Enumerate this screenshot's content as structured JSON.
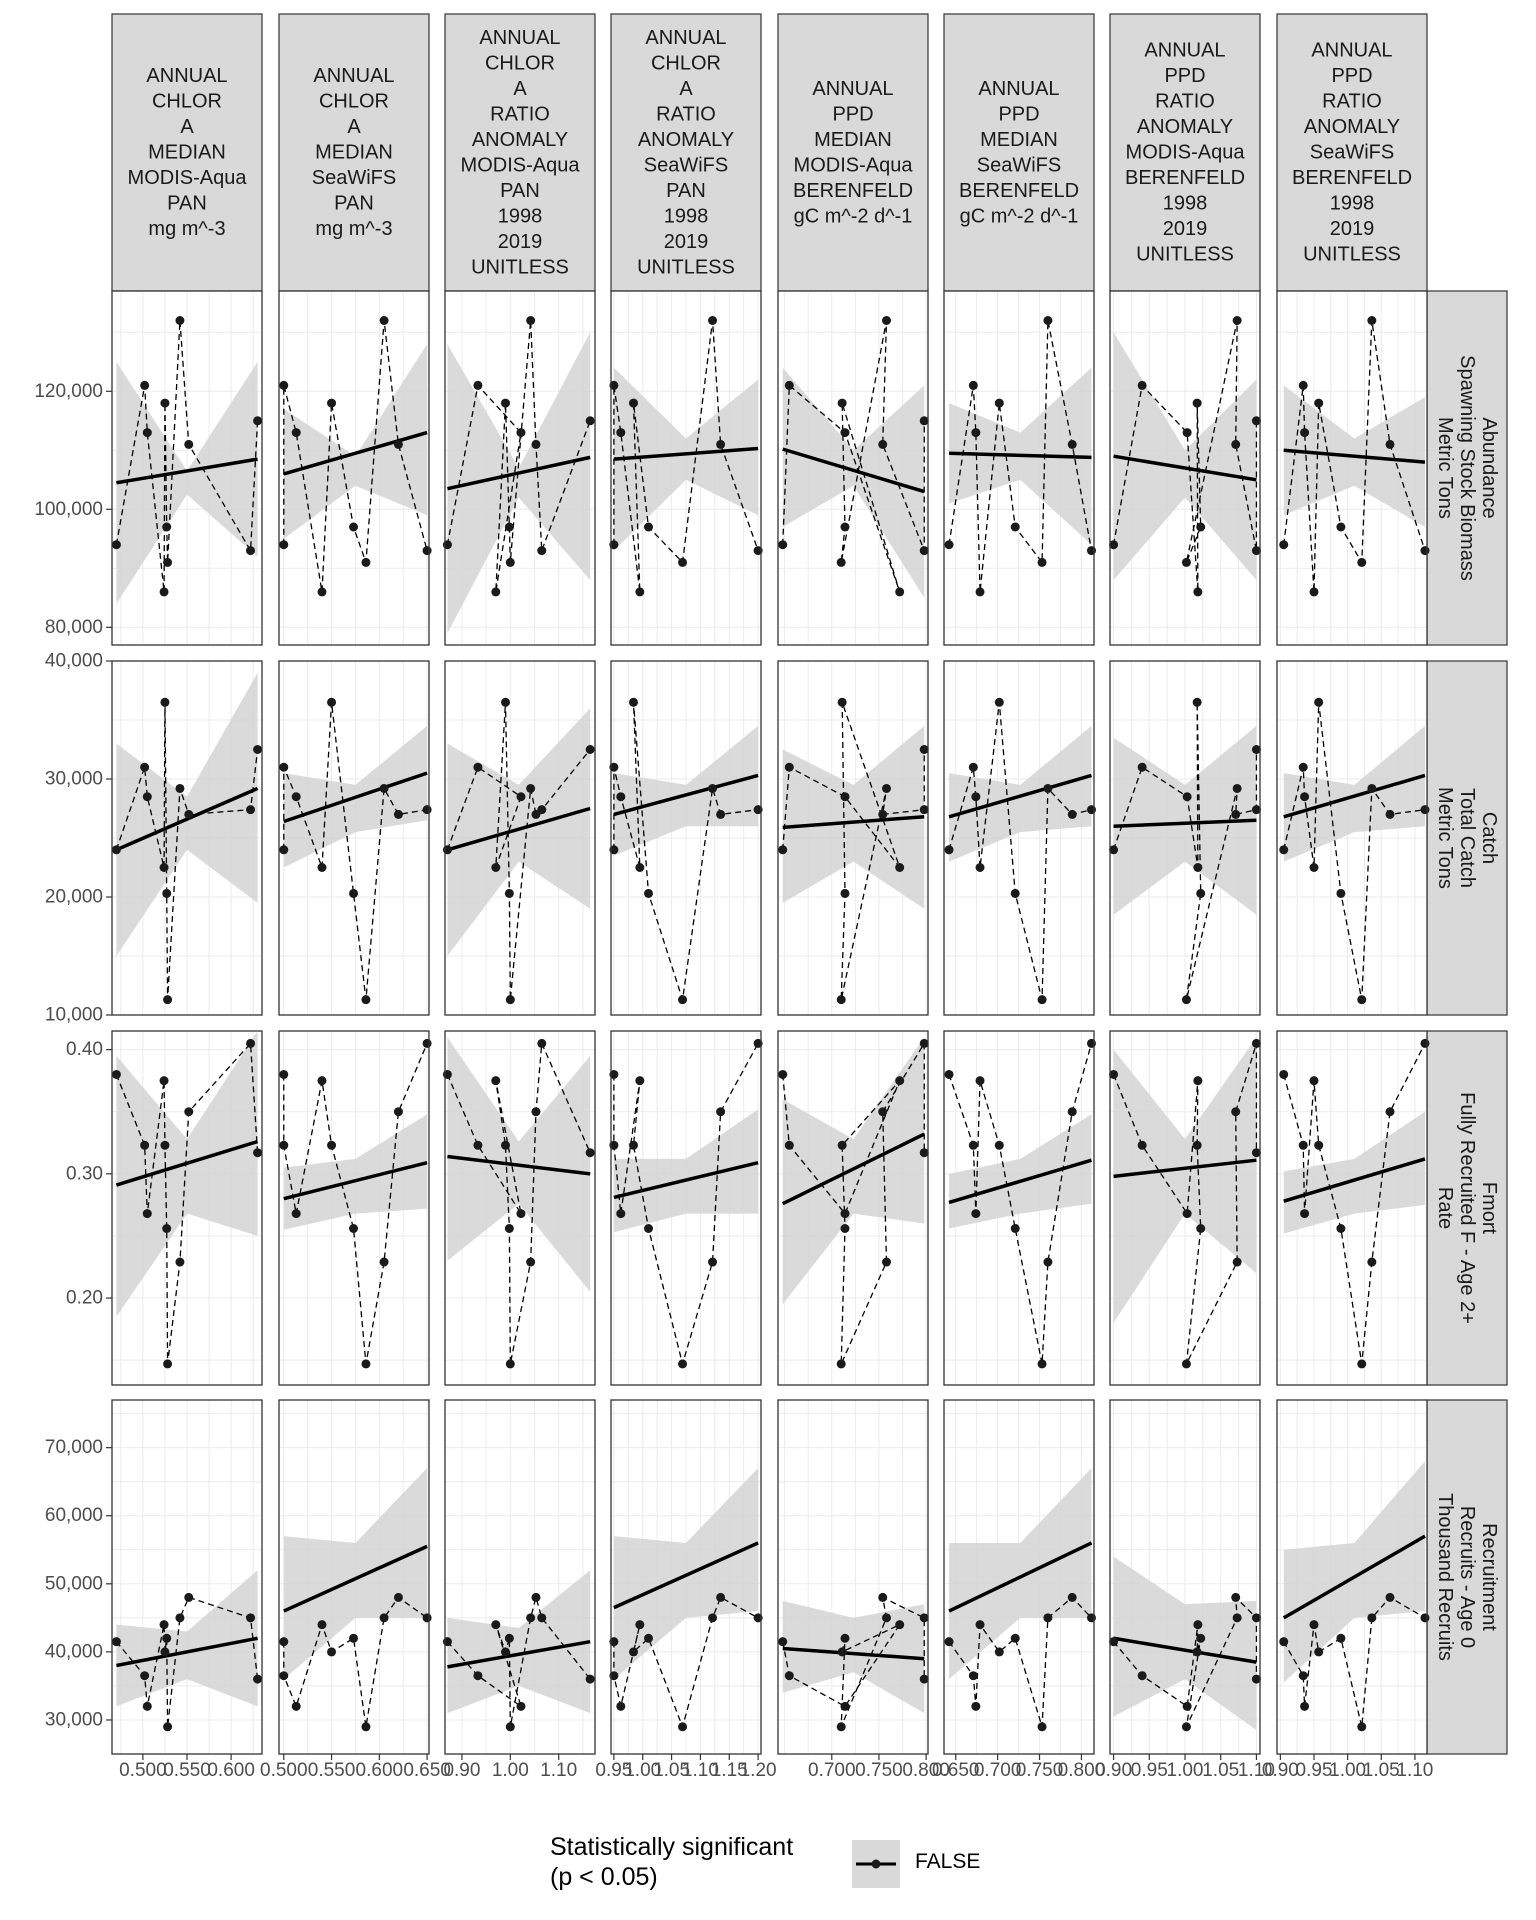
{
  "chart_data": {
    "type": "scatter",
    "facet_columns": [
      {
        "strip": [
          "ANNUAL",
          "CHLOR",
          "A",
          "MEDIAN",
          "MODIS-Aqua",
          "PAN",
          "mg m^-3"
        ],
        "xlim": [
          0.465,
          0.635
        ],
        "ticks": [
          0.5,
          0.55,
          0.6
        ],
        "tick_labels": [
          "0.500",
          "0.550",
          "0.600"
        ],
        "x": [
          0.47,
          0.502,
          0.505,
          0.524,
          0.525,
          0.527,
          0.528,
          0.542,
          0.552,
          0.622,
          0.63
        ]
      },
      {
        "strip": [
          "ANNUAL",
          "CHLOR",
          "A",
          "MEDIAN",
          "SeaWiFS",
          "PAN",
          "mg m^-3"
        ],
        "xlim": [
          0.495,
          0.652
        ],
        "ticks": [
          0.5,
          0.55,
          0.6,
          0.65
        ],
        "tick_labels": [
          "0.500",
          "0.550",
          "0.600",
          "0.650"
        ],
        "x": [
          0.5,
          0.5,
          0.513,
          0.54,
          0.55,
          0.573,
          0.586,
          0.605,
          0.62,
          0.65,
          null
        ]
      },
      {
        "strip": [
          "ANNUAL",
          "CHLOR",
          "A",
          "RATIO",
          "ANOMALY",
          "MODIS-Aqua",
          "PAN",
          "1998",
          "2019",
          "UNITLESS"
        ],
        "xlim": [
          0.865,
          1.175
        ],
        "ticks": [
          0.9,
          1.0,
          1.1
        ],
        "tick_labels": [
          "0.90",
          "1.00",
          "1.10"
        ],
        "x": [
          0.87,
          0.933,
          1.022,
          0.97,
          0.99,
          0.998,
          1.0,
          1.042,
          1.053,
          1.065,
          1.165
        ]
      },
      {
        "strip": [
          "ANNUAL",
          "CHLOR",
          "A",
          "RATIO",
          "ANOMALY",
          "SeaWiFS",
          "PAN",
          "1998",
          "2019",
          "UNITLESS"
        ],
        "xlim": [
          0.945,
          1.205
        ],
        "ticks": [
          0.95,
          1.0,
          1.05,
          1.1,
          1.15,
          1.2
        ],
        "tick_labels": [
          "0.95",
          "1.00",
          "1.05",
          "1.10",
          "1.15",
          "1.20"
        ],
        "x": [
          0.95,
          0.95,
          0.962,
          0.995,
          0.984,
          1.01,
          1.069,
          1.121,
          1.135,
          1.2,
          null
        ]
      },
      {
        "strip": [
          "ANNUAL",
          "PPD",
          "MEDIAN",
          "MODIS-Aqua",
          "BERENFELD",
          "gC m^-2 d^-1"
        ],
        "xlim": [
          0.643,
          0.802
        ],
        "ticks": [
          0.7,
          0.75,
          0.8
        ],
        "tick_labels": [
          "0.700",
          "0.750",
          "0.800"
        ],
        "x": [
          0.648,
          0.655,
          0.714,
          0.772,
          0.711,
          0.714,
          0.71,
          0.758,
          0.754,
          0.798,
          0.798
        ]
      },
      {
        "strip": [
          "ANNUAL",
          "PPD",
          "MEDIAN",
          "SeaWiFS",
          "BERENFELD",
          "gC m^-2 d^-1"
        ],
        "xlim": [
          0.636,
          0.815
        ],
        "ticks": [
          0.65,
          0.7,
          0.75,
          0.8
        ],
        "tick_labels": [
          "0.650",
          "0.700",
          "0.750",
          "0.800"
        ],
        "x": [
          0.642,
          0.671,
          0.674,
          0.679,
          0.702,
          0.721,
          0.753,
          0.76,
          0.789,
          0.812,
          null
        ]
      },
      {
        "strip": [
          "ANNUAL",
          "PPD",
          "RATIO",
          "ANOMALY",
          "MODIS-Aqua",
          "BERENFELD",
          "1998",
          "2019",
          "UNITLESS"
        ],
        "xlim": [
          0.895,
          1.105
        ],
        "ticks": [
          0.9,
          0.95,
          1.0,
          1.05,
          1.1
        ],
        "tick_labels": [
          "0.90",
          "0.95",
          "1.00",
          "1.05",
          "1.10"
        ],
        "x": [
          0.9,
          0.94,
          1.003,
          1.018,
          1.017,
          1.022,
          1.002,
          1.073,
          1.071,
          1.1,
          1.1
        ]
      },
      {
        "strip": [
          "ANNUAL",
          "PPD",
          "RATIO",
          "ANOMALY",
          "SeaWiFS",
          "BERENFELD",
          "1998",
          "2019",
          "UNITLESS"
        ],
        "xlim": [
          0.895,
          1.118
        ],
        "ticks": [
          0.9,
          0.95,
          1.0,
          1.05,
          1.1
        ],
        "tick_labels": [
          "0.90",
          "0.95",
          "1.00",
          "1.05",
          "1.10"
        ],
        "x": [
          0.905,
          0.934,
          0.936,
          0.95,
          0.957,
          0.99,
          1.021,
          1.036,
          1.063,
          1.115,
          null
        ]
      }
    ],
    "facet_rows": [
      {
        "strip": [
          "Abundance",
          "Spawning Stock Biomass",
          "Metric Tons"
        ],
        "ylim": [
          77000,
          137000
        ],
        "ticks": [
          80000,
          100000,
          120000
        ],
        "tick_labels": [
          "80,000",
          "100,000",
          "120,000"
        ],
        "y": [
          94000,
          121000,
          113000,
          86000,
          118000,
          97000,
          91000,
          132000,
          111000,
          93000,
          115000
        ],
        "fit": [
          [
            104500,
            108500
          ],
          [
            106000,
            113000
          ],
          [
            103500,
            108800
          ],
          [
            108500,
            110300
          ],
          [
            110200,
            103000
          ],
          [
            109500,
            108800
          ],
          [
            109000,
            105000
          ],
          [
            110000,
            108000
          ]
        ],
        "band": [
          [
            [
              84000,
              125000
            ],
            [
              102500,
              106500
            ],
            [
              92000,
              125000
            ]
          ],
          [
            [
              95000,
              117000
            ],
            [
              104000,
              109000
            ],
            [
              99000,
              128000
            ]
          ],
          [
            [
              79000,
              128000
            ],
            [
              102000,
              107000
            ],
            [
              88000,
              130000
            ]
          ],
          [
            [
              93000,
              124000
            ],
            [
              105000,
              112000
            ],
            [
              99000,
              122000
            ]
          ],
          [
            [
              97000,
              124000
            ],
            [
              104000,
              110000
            ],
            [
              85000,
              121000
            ]
          ],
          [
            [
              101000,
              118000
            ],
            [
              105000,
              113000
            ],
            [
              94000,
              124000
            ]
          ],
          [
            [
              88000,
              130000
            ],
            [
              102000,
              110000
            ],
            [
              88000,
              122000
            ]
          ],
          [
            [
              99000,
              121000
            ],
            [
              104000,
              112000
            ],
            [
              97000,
              119000
            ]
          ]
        ]
      },
      {
        "strip": [
          "Catch",
          "Total Catch",
          "Metric Tons"
        ],
        "ylim": [
          10000,
          40000
        ],
        "ticks": [
          10000,
          20000,
          30000,
          40000
        ],
        "tick_labels": [
          "10,000",
          "20,000",
          "30,000",
          "40,000"
        ],
        "y": [
          24000,
          31000,
          28500,
          22500,
          36500,
          20300,
          11300,
          29200,
          27000,
          27400,
          32500
        ],
        "fit": [
          [
            24000,
            29200
          ],
          [
            26400,
            30500
          ],
          [
            24000,
            27500
          ],
          [
            27000,
            30300
          ],
          [
            25900,
            26800
          ],
          [
            26800,
            30300
          ],
          [
            26000,
            26500
          ],
          [
            26800,
            30300
          ]
        ],
        "band": [
          [
            [
              15000,
              33000
            ],
            [
              24000,
              28500
            ],
            [
              19500,
              39000
            ]
          ],
          [
            [
              22500,
              30500
            ],
            [
              25500,
              29500
            ],
            [
              26500,
              34500
            ]
          ],
          [
            [
              15000,
              33000
            ],
            [
              23000,
              29500
            ],
            [
              19000,
              36000
            ]
          ],
          [
            [
              23500,
              30500
            ],
            [
              26000,
              29500
            ],
            [
              26000,
              34500
            ]
          ],
          [
            [
              19500,
              32500
            ],
            [
              23000,
              29500
            ],
            [
              19000,
              34500
            ]
          ],
          [
            [
              23000,
              30500
            ],
            [
              25500,
              29500
            ],
            [
              26000,
              34500
            ]
          ],
          [
            [
              18500,
              33500
            ],
            [
              23000,
              29500
            ],
            [
              18500,
              34500
            ]
          ],
          [
            [
              23000,
              30500
            ],
            [
              25500,
              29500
            ],
            [
              26000,
              34500
            ]
          ]
        ]
      },
      {
        "strip": [
          "Fmort",
          "Fully Recruited F - Age 2+",
          "Rate"
        ],
        "ylim": [
          0.13,
          0.415
        ],
        "ticks": [
          0.2,
          0.3,
          0.4
        ],
        "tick_labels": [
          "0.20",
          "0.30",
          "0.40"
        ],
        "y": [
          0.38,
          0.323,
          0.268,
          0.375,
          0.323,
          0.256,
          0.147,
          0.229,
          0.35,
          0.405,
          0.317
        ],
        "fit": [
          [
            0.291,
            0.326
          ],
          [
            0.28,
            0.309
          ],
          [
            0.314,
            0.3
          ],
          [
            0.281,
            0.309
          ],
          [
            0.276,
            0.332
          ],
          [
            0.277,
            0.311
          ],
          [
            0.298,
            0.311
          ],
          [
            0.278,
            0.312
          ]
        ],
        "band": [
          [
            [
              0.185,
              0.395
            ],
            [
              0.268,
              0.328
            ],
            [
              0.25,
              0.42
            ]
          ],
          [
            [
              0.255,
              0.305
            ],
            [
              0.268,
              0.312
            ],
            [
              0.272,
              0.348
            ]
          ],
          [
            [
              0.23,
              0.41
            ],
            [
              0.276,
              0.326
            ],
            [
              0.205,
              0.395
            ]
          ],
          [
            [
              0.253,
              0.312
            ],
            [
              0.268,
              0.312
            ],
            [
              0.268,
              0.352
            ]
          ],
          [
            [
              0.195,
              0.36
            ],
            [
              0.268,
              0.328
            ],
            [
              0.26,
              0.41
            ]
          ],
          [
            [
              0.256,
              0.3
            ],
            [
              0.268,
              0.312
            ],
            [
              0.276,
              0.348
            ]
          ],
          [
            [
              0.18,
              0.4
            ],
            [
              0.268,
              0.328
            ],
            [
              0.22,
              0.41
            ]
          ],
          [
            [
              0.252,
              0.302
            ],
            [
              0.268,
              0.312
            ],
            [
              0.275,
              0.35
            ]
          ]
        ]
      },
      {
        "strip": [
          "Recruitment",
          "Recruits - Age 0",
          "Thousand Recruits"
        ],
        "ylim": [
          25000,
          77000
        ],
        "ticks": [
          30000,
          40000,
          50000,
          60000,
          70000
        ],
        "tick_labels": [
          "30,000",
          "40,000",
          "50,000",
          "60,000",
          "70,000"
        ],
        "y": [
          41500,
          36500,
          32000,
          44000,
          40000,
          42000,
          29000,
          45000,
          48000,
          45000,
          36000
        ],
        "fit": [
          [
            38000,
            42000
          ],
          [
            46000,
            55500
          ],
          [
            37800,
            41500
          ],
          [
            46500,
            56000
          ],
          [
            40500,
            39000
          ],
          [
            46000,
            56000
          ],
          [
            42000,
            38500
          ],
          [
            45000,
            57000
          ]
        ],
        "band": [
          [
            [
              32000,
              44000
            ],
            [
              36000,
              43000
            ],
            [
              32000,
              52000
            ]
          ],
          [
            [
              36000,
              57000
            ],
            [
              45000,
              56000
            ],
            [
              45000,
              67000
            ]
          ],
          [
            [
              31000,
              45000
            ],
            [
              35000,
              43500
            ],
            [
              31000,
              52000
            ]
          ],
          [
            [
              36000,
              57000
            ],
            [
              45000,
              56000
            ],
            [
              46000,
              67000
            ]
          ],
          [
            [
              34000,
              47500
            ],
            [
              37000,
              45000
            ],
            [
              31000,
              47000
            ]
          ],
          [
            [
              36000,
              56000
            ],
            [
              45000,
              56000
            ],
            [
              45000,
              67000
            ]
          ],
          [
            [
              30500,
              54000
            ],
            [
              36000,
              47000
            ],
            [
              28500,
              47500
            ]
          ],
          [
            [
              35500,
              55000
            ],
            [
              45000,
              56000
            ],
            [
              46000,
              68000
            ]
          ]
        ]
      }
    ],
    "legend": {
      "title": [
        "Statistically significant",
        "(p < 0.05)"
      ],
      "entries": [
        "FALSE"
      ],
      "placement": "bottom"
    },
    "grid": true,
    "colors": {
      "points": "#1a1a1a",
      "fit": "#000000",
      "band": "#d3d3d3",
      "strip_bg": "#d9d9d9",
      "grid": "#ebebeb",
      "panel_border": "#333333",
      "axis_text": "#4d4d4d"
    }
  }
}
